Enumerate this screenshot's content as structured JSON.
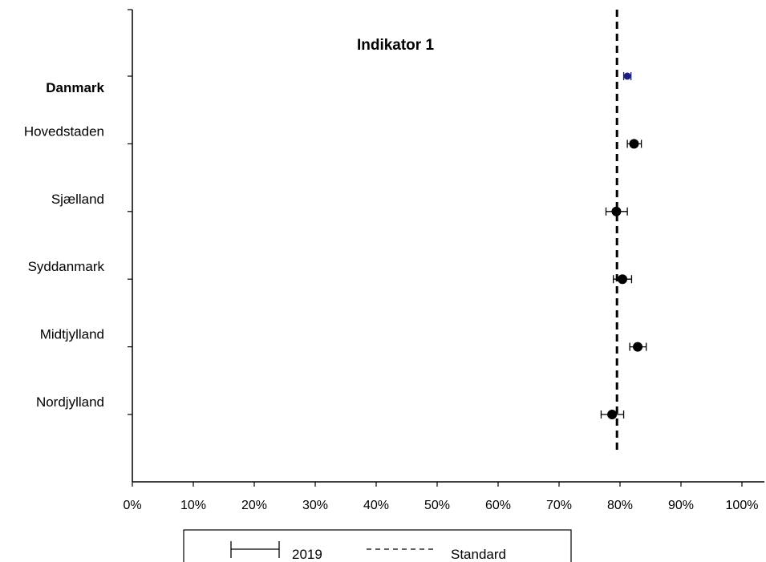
{
  "chart_data": {
    "type": "scatter",
    "title": "Indikator 1",
    "xlabel": "",
    "ylabel": "",
    "xlim": [
      0,
      100
    ],
    "x_ticks": [
      "0%",
      "10%",
      "20%",
      "30%",
      "40%",
      "50%",
      "60%",
      "70%",
      "80%",
      "90%",
      "100%"
    ],
    "grid": false,
    "legend_position": "bottom",
    "standard_line": {
      "name": "Standard",
      "x": 79.5,
      "style": "dashed",
      "color": "#000000"
    },
    "series": [
      {
        "name": "2019",
        "categories": [
          "Danmark",
          "Hovedstaden",
          "Sjælland",
          "Syddanmark",
          "Midtjylland",
          "Nordjylland"
        ],
        "bold_categories": [
          "Danmark"
        ],
        "values": [
          81.2,
          82.3,
          79.4,
          80.4,
          82.9,
          78.7
        ],
        "ci_low": [
          80.6,
          81.2,
          77.7,
          78.9,
          81.6,
          76.9
        ],
        "ci_high": [
          81.8,
          83.5,
          81.2,
          81.9,
          84.3,
          80.6
        ],
        "colors": [
          "#1f1f7a",
          "#000000",
          "#000000",
          "#000000",
          "#000000",
          "#000000"
        ]
      }
    ],
    "legend": [
      "2019",
      "Standard"
    ]
  }
}
